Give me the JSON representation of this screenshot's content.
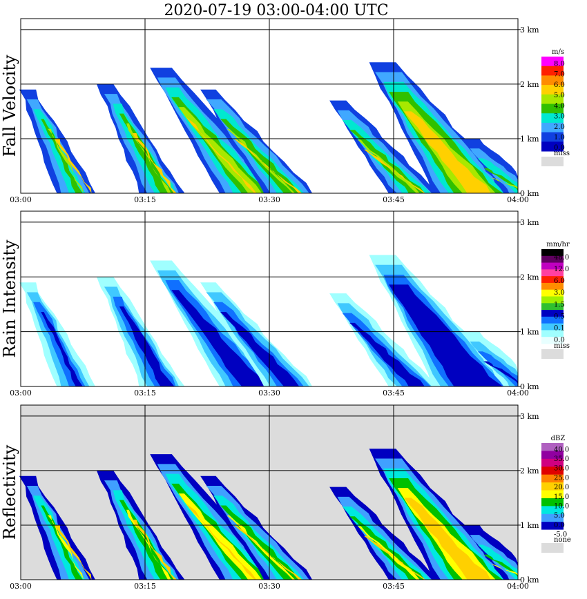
{
  "title": "2020-07-19   03:00-04:00 UTC",
  "colors": {
    "missing": "#dcdcdc",
    "grid": "#000000"
  },
  "chart_data": [
    {
      "type": "heatmap",
      "panel_title": "Fall Velocity",
      "x_ticks": [
        "03:00",
        "03:15",
        "03:30",
        "03:45",
        "04:00"
      ],
      "y_ticks": [
        "0 km",
        "1 km",
        "2 km",
        "3 km"
      ],
      "xlim_min": [
        0,
        60
      ],
      "ylim_km": [
        0,
        3.2
      ],
      "background": "#ffffff",
      "colorbar": {
        "unit": "m/s",
        "labels": [
          "8.0",
          "7.0",
          "6.0",
          "5.0",
          "4.0",
          "3.0",
          "2.0",
          "1.0",
          "0.0"
        ],
        "colors": [
          "#ff00ff",
          "#ff2000",
          "#ff8c00",
          "#ffd000",
          "#a8e800",
          "#30c000",
          "#00e8d0",
          "#40a8ff",
          "#1040e0",
          "#0000c0"
        ],
        "missing_label": "miss"
      }
    },
    {
      "type": "heatmap",
      "panel_title": "Rain Intensity",
      "x_ticks": [
        "03:00",
        "03:15",
        "03:30",
        "03:45",
        "04:00"
      ],
      "y_ticks": [
        "0 km",
        "1 km",
        "2 km",
        "3 km"
      ],
      "xlim_min": [
        0,
        60
      ],
      "ylim_km": [
        0,
        3.2
      ],
      "background": "#ffffff",
      "colorbar": {
        "unit": "mm/hr",
        "labels": [
          "48.0",
          "12.0",
          "6.0",
          "3.0",
          "1.5",
          "0.5",
          "0.1",
          "0.0"
        ],
        "colors": [
          "#000000",
          "#600060",
          "#c000c0",
          "#ff40a0",
          "#ff2000",
          "#ff8c00",
          "#ffff00",
          "#a0f000",
          "#30c030",
          "#0000c0",
          "#1070ff",
          "#40c8ff",
          "#a0ffff",
          "#e8ffff"
        ],
        "missing_label": "miss"
      }
    },
    {
      "type": "heatmap",
      "panel_title": "Reflectivity",
      "x_ticks": [
        "03:00",
        "03:15",
        "03:30",
        "03:45",
        "04:00"
      ],
      "y_ticks": [
        "0 km",
        "1 km",
        "2 km",
        "3 km"
      ],
      "xlim_min": [
        0,
        60
      ],
      "ylim_km": [
        0,
        3.2
      ],
      "background": "#dcdcdc",
      "colorbar": {
        "unit": "dBZ",
        "labels": [
          "40.0",
          "35.0",
          "30.0",
          "25.0",
          "20.0",
          "15.0",
          "10.0",
          "5.0",
          "0.0",
          "-5.0"
        ],
        "colors": [
          "#b060c0",
          "#9000a0",
          "#d00080",
          "#e00000",
          "#ff8000",
          "#ffd000",
          "#ffff00",
          "#00c000",
          "#00e8e0",
          "#40a0ff",
          "#0000c0",
          "#ffffff"
        ],
        "missing_label": "none"
      }
    }
  ]
}
